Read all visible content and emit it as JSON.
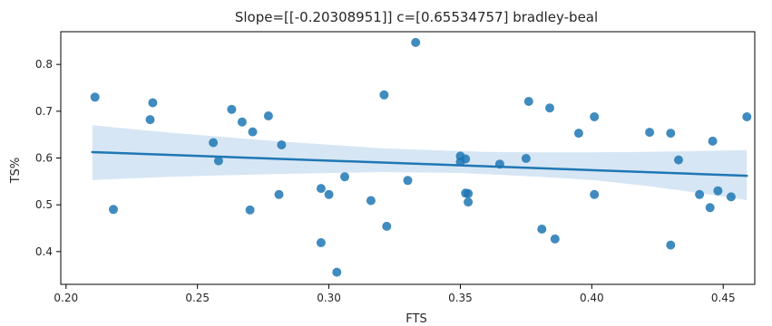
{
  "chart_data": {
    "type": "scatter",
    "title": "Slope=[[-0.20308951]] c=[0.65534757]  bradley-beal",
    "xlabel": "FTS",
    "ylabel": "TS%",
    "xlim": [
      0.198,
      0.462
    ],
    "ylim": [
      0.33,
      0.87
    ],
    "xticks": [
      0.2,
      0.25,
      0.3,
      0.35,
      0.4,
      0.45
    ],
    "xtick_labels": [
      "0.20",
      "0.25",
      "0.30",
      "0.35",
      "0.40",
      "0.45"
    ],
    "yticks": [
      0.4,
      0.5,
      0.6,
      0.7,
      0.8
    ],
    "ytick_labels": [
      "0.4",
      "0.5",
      "0.6",
      "0.7",
      "0.8"
    ],
    "grid": false,
    "legend": false,
    "point_color": "#1f77b4",
    "line_color": "#1f77b4",
    "band_color": "#c6dbef",
    "regression": {
      "slope": -0.20308951,
      "intercept": 0.65534757,
      "x_range": [
        0.21,
        0.459
      ],
      "ci_upper": [
        [
          0.21,
          0.67
        ],
        [
          0.24,
          0.654
        ],
        [
          0.28,
          0.636
        ],
        [
          0.32,
          0.621
        ],
        [
          0.36,
          0.613
        ],
        [
          0.38,
          0.612
        ],
        [
          0.4,
          0.612
        ],
        [
          0.42,
          0.613
        ],
        [
          0.44,
          0.615
        ],
        [
          0.459,
          0.617
        ]
      ],
      "ci_lower": [
        [
          0.21,
          0.553
        ],
        [
          0.24,
          0.56
        ],
        [
          0.28,
          0.566
        ],
        [
          0.32,
          0.57
        ],
        [
          0.35,
          0.568
        ],
        [
          0.38,
          0.56
        ],
        [
          0.4,
          0.553
        ],
        [
          0.42,
          0.541
        ],
        [
          0.44,
          0.526
        ],
        [
          0.459,
          0.51
        ]
      ]
    },
    "points": [
      [
        0.211,
        0.73
      ],
      [
        0.218,
        0.49
      ],
      [
        0.232,
        0.682
      ],
      [
        0.233,
        0.718
      ],
      [
        0.256,
        0.633
      ],
      [
        0.258,
        0.594
      ],
      [
        0.263,
        0.704
      ],
      [
        0.267,
        0.677
      ],
      [
        0.27,
        0.489
      ],
      [
        0.271,
        0.656
      ],
      [
        0.277,
        0.69
      ],
      [
        0.281,
        0.522
      ],
      [
        0.282,
        0.628
      ],
      [
        0.297,
        0.535
      ],
      [
        0.297,
        0.419
      ],
      [
        0.3,
        0.522
      ],
      [
        0.303,
        0.356
      ],
      [
        0.306,
        0.56
      ],
      [
        0.316,
        0.509
      ],
      [
        0.321,
        0.735
      ],
      [
        0.322,
        0.454
      ],
      [
        0.33,
        0.552
      ],
      [
        0.333,
        0.847
      ],
      [
        0.35,
        0.604
      ],
      [
        0.35,
        0.592
      ],
      [
        0.352,
        0.598
      ],
      [
        0.352,
        0.525
      ],
      [
        0.353,
        0.506
      ],
      [
        0.353,
        0.524
      ],
      [
        0.365,
        0.587
      ],
      [
        0.375,
        0.599
      ],
      [
        0.376,
        0.721
      ],
      [
        0.381,
        0.448
      ],
      [
        0.384,
        0.707
      ],
      [
        0.386,
        0.427
      ],
      [
        0.395,
        0.653
      ],
      [
        0.401,
        0.688
      ],
      [
        0.401,
        0.522
      ],
      [
        0.422,
        0.655
      ],
      [
        0.43,
        0.653
      ],
      [
        0.43,
        0.414
      ],
      [
        0.433,
        0.596
      ],
      [
        0.441,
        0.522
      ],
      [
        0.445,
        0.494
      ],
      [
        0.446,
        0.636
      ],
      [
        0.448,
        0.53
      ],
      [
        0.453,
        0.517
      ],
      [
        0.459,
        0.688
      ]
    ]
  }
}
